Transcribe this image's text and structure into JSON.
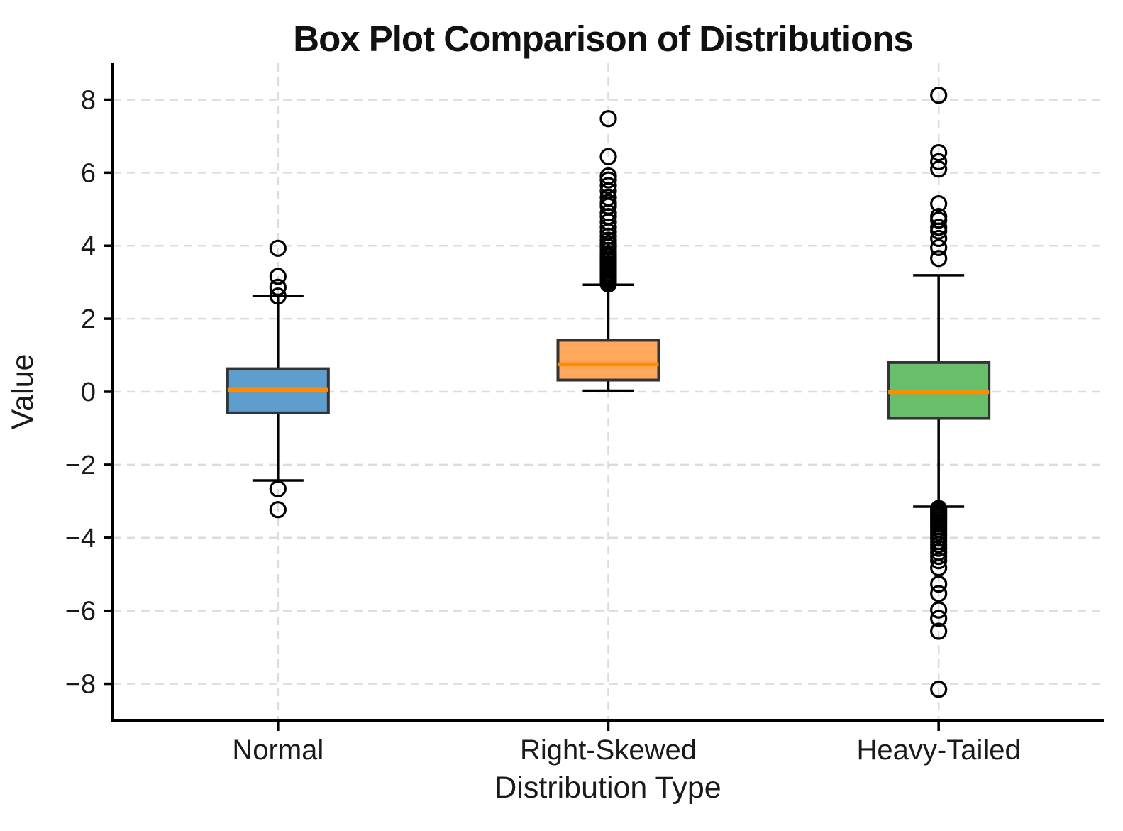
{
  "chart_data": {
    "type": "boxplot",
    "title": "Box Plot Comparison of Distributions",
    "xlabel": "Distribution Type",
    "ylabel": "Value",
    "categories": [
      "Normal",
      "Right-Skewed",
      "Heavy-Tailed"
    ],
    "ylim": [
      -9,
      9
    ],
    "yticks": [
      8,
      6,
      4,
      2,
      0,
      -2,
      -4,
      -6,
      -8
    ],
    "grid": true,
    "legend_position": "none",
    "style": {
      "median_color": "#FF8C00",
      "box_edge_color": "#333333",
      "whisker_color": "#000000",
      "flier_edge_color": "#000000",
      "grid_color": "#DCDCDC",
      "axis_color": "#000000"
    },
    "series": [
      {
        "name": "Normal",
        "box_color": "#5E9ECE",
        "whislo": -2.43,
        "q1": -0.58,
        "med": 0.05,
        "q3": 0.63,
        "whishi": 2.62,
        "fliers": [
          3.93,
          3.16,
          2.86,
          2.62,
          -2.66,
          -3.23
        ]
      },
      {
        "name": "Right-Skewed",
        "box_color": "#FFA85C",
        "whislo": 0.03,
        "q1": 0.32,
        "med": 0.75,
        "q3": 1.41,
        "whishi": 2.93,
        "fliers": [
          2.95,
          3.0,
          3.05,
          3.1,
          3.15,
          3.2,
          3.26,
          3.32,
          3.38,
          3.44,
          3.5,
          3.57,
          3.64,
          3.71,
          3.79,
          3.87,
          3.96,
          4.05,
          4.15,
          4.26,
          4.38,
          4.51,
          4.65,
          4.8,
          4.9,
          5.08,
          5.18,
          5.32,
          5.5,
          5.65,
          5.8,
          5.91,
          6.44,
          7.48
        ]
      },
      {
        "name": "Heavy-Tailed",
        "box_color": "#68BE6B",
        "whislo": -3.15,
        "q1": -0.73,
        "med": -0.01,
        "q3": 0.8,
        "whishi": 3.19,
        "fliers": [
          8.12,
          6.55,
          6.3,
          6.1,
          5.15,
          4.8,
          4.7,
          4.5,
          4.4,
          4.2,
          3.95,
          3.65,
          -3.2,
          -3.26,
          -3.32,
          -3.38,
          -3.44,
          -3.5,
          -3.56,
          -3.63,
          -3.7,
          -3.77,
          -3.85,
          -3.93,
          -4.01,
          -4.1,
          -4.19,
          -4.29,
          -4.4,
          -4.51,
          -4.63,
          -4.82,
          -5.27,
          -5.53,
          -5.98,
          -6.21,
          -6.56,
          -8.15
        ]
      }
    ]
  }
}
